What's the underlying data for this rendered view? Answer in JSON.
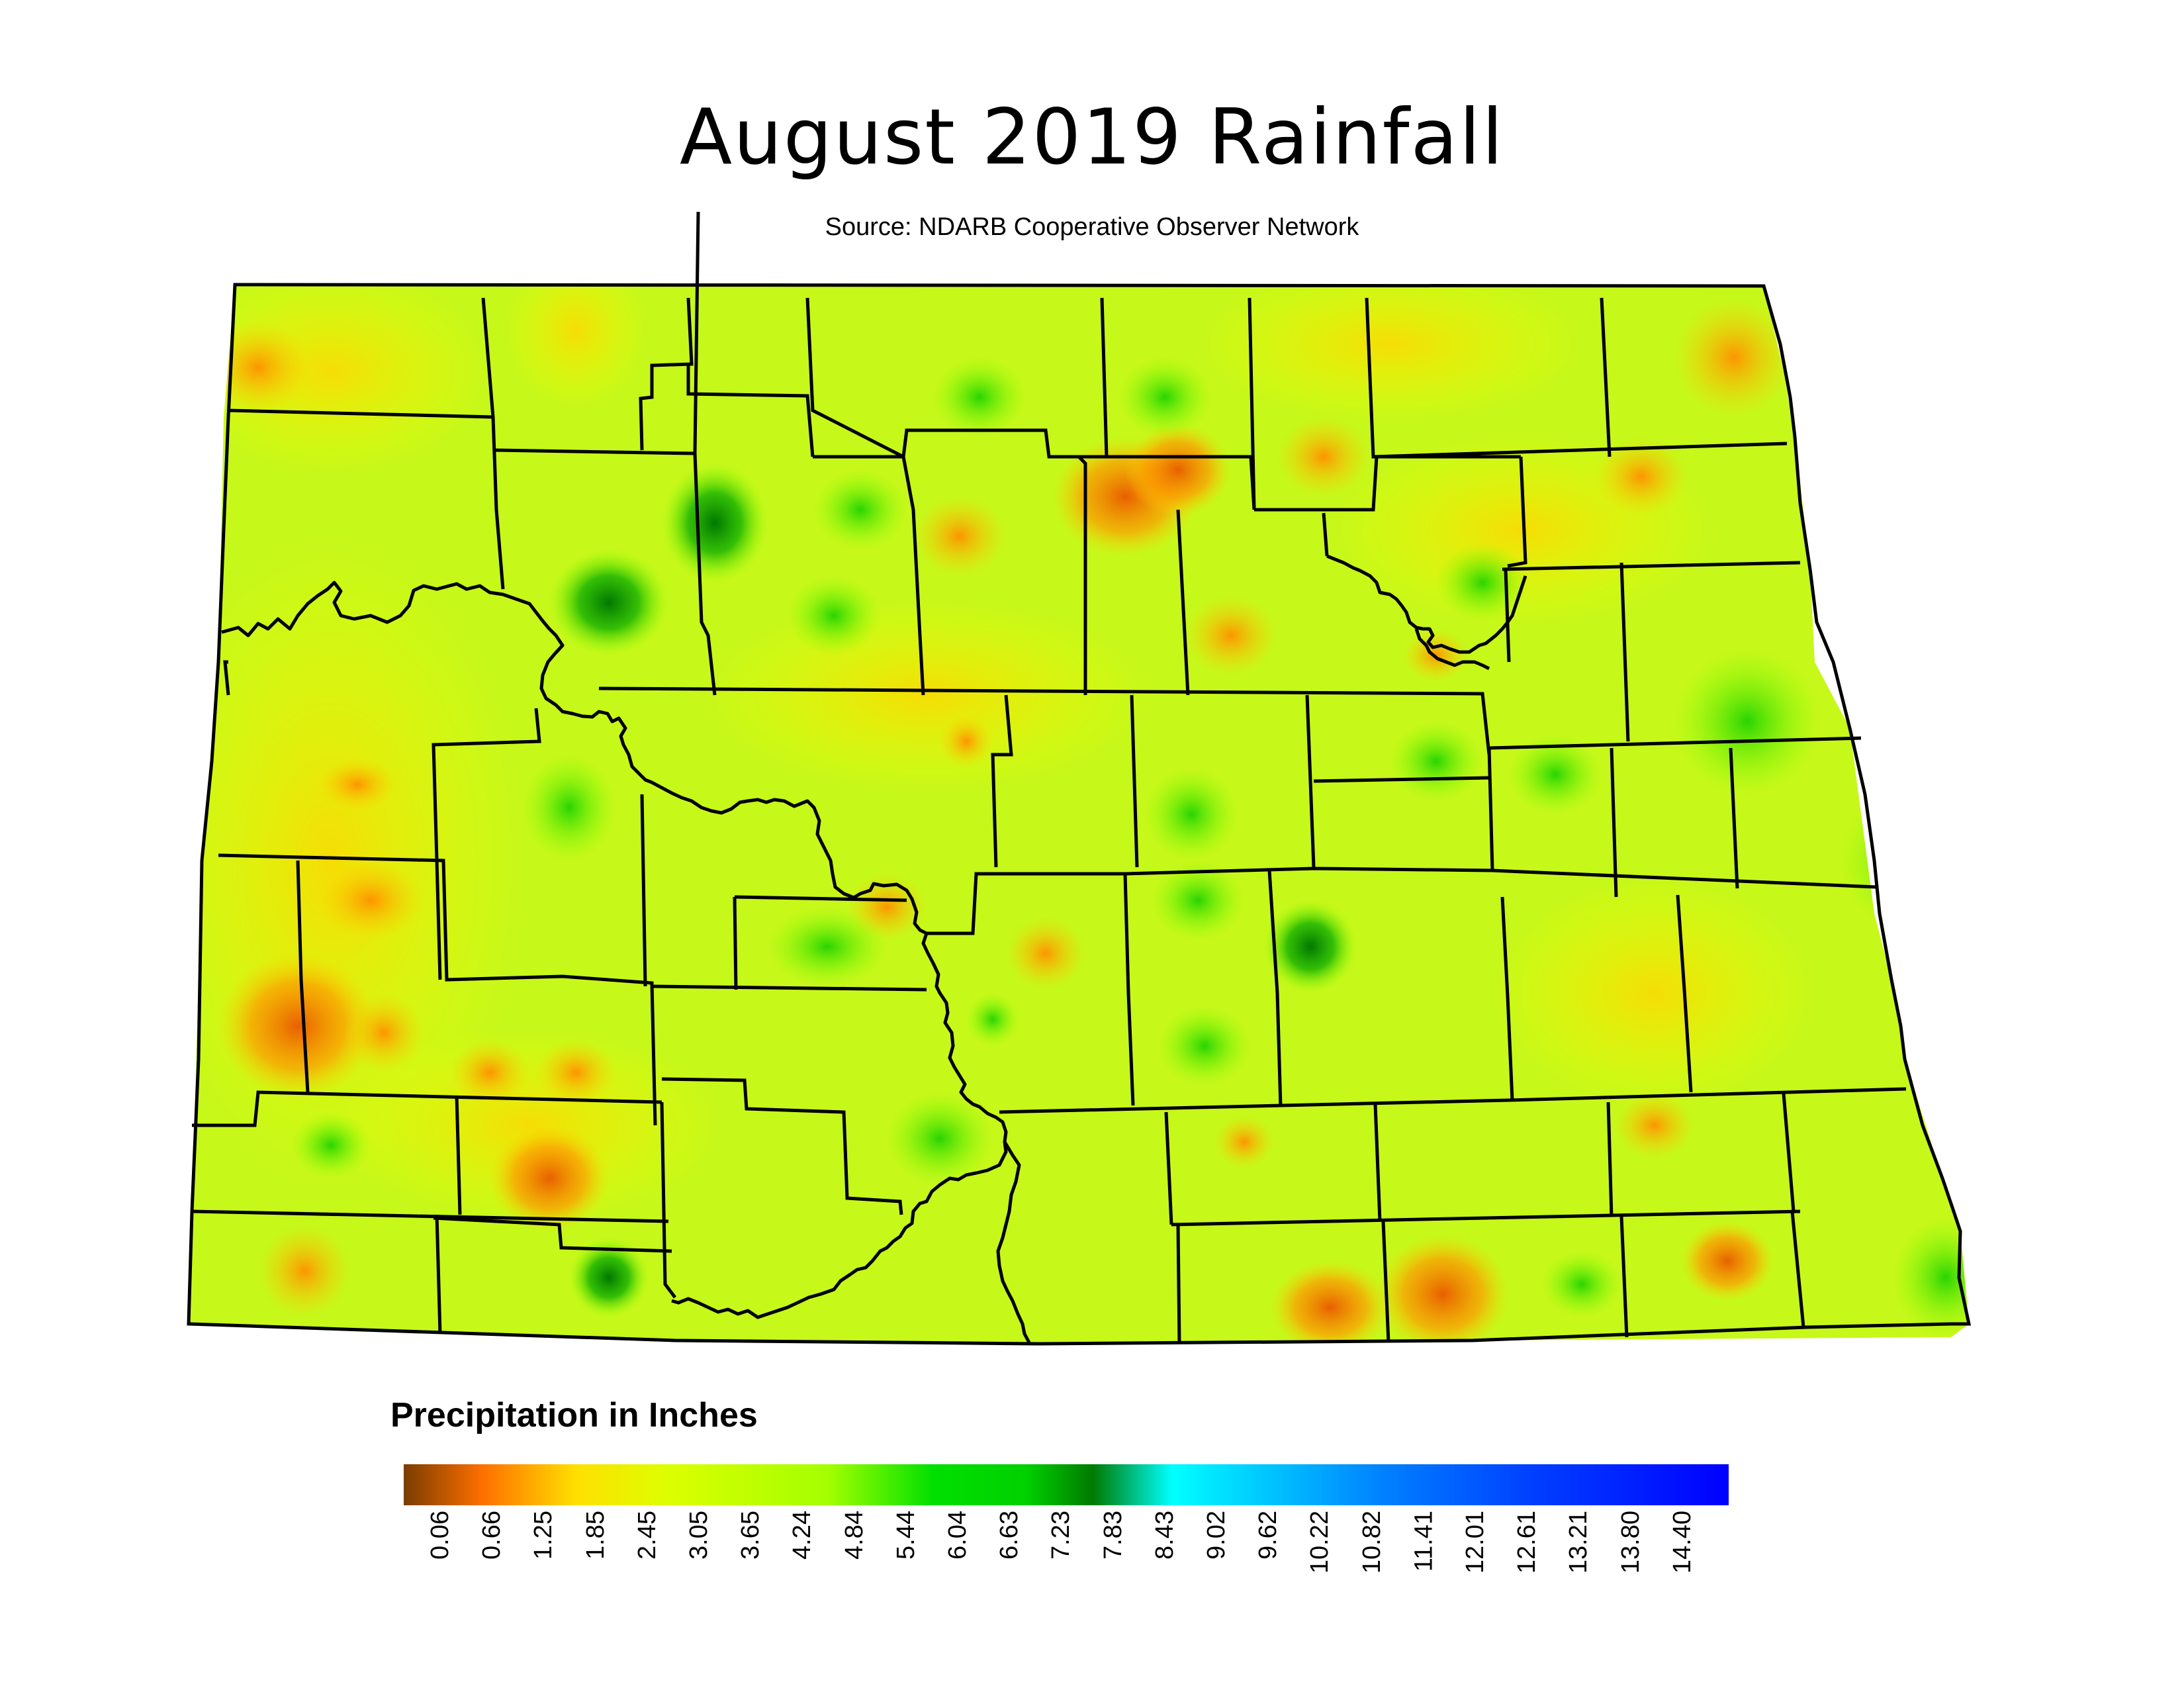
{
  "title": "August 2019 Rainfall",
  "subtitle": "Source: NDARB Cooperative Observer Network",
  "legend": {
    "title": "Precipitation in Inches",
    "ticks": [
      "0.06",
      "0.66",
      "1.25",
      "1.85",
      "2.45",
      "3.05",
      "3.65",
      "4.24",
      "4.84",
      "5.44",
      "6.04",
      "6.63",
      "7.23",
      "7.83",
      "8.43",
      "9.02",
      "9.62",
      "10.22",
      "10.82",
      "11.41",
      "12.01",
      "12.61",
      "13.21",
      "13.80",
      "14.40"
    ],
    "colors": [
      "#7a3c00",
      "#ff7000",
      "#ffe000",
      "#dcff00",
      "#a4ff00",
      "#00e000",
      "#007a00",
      "#00ffff",
      "#0080ff",
      "#0000ff"
    ]
  },
  "map": {
    "region": "North Dakota",
    "base_color": "#c8ff1e"
  }
}
